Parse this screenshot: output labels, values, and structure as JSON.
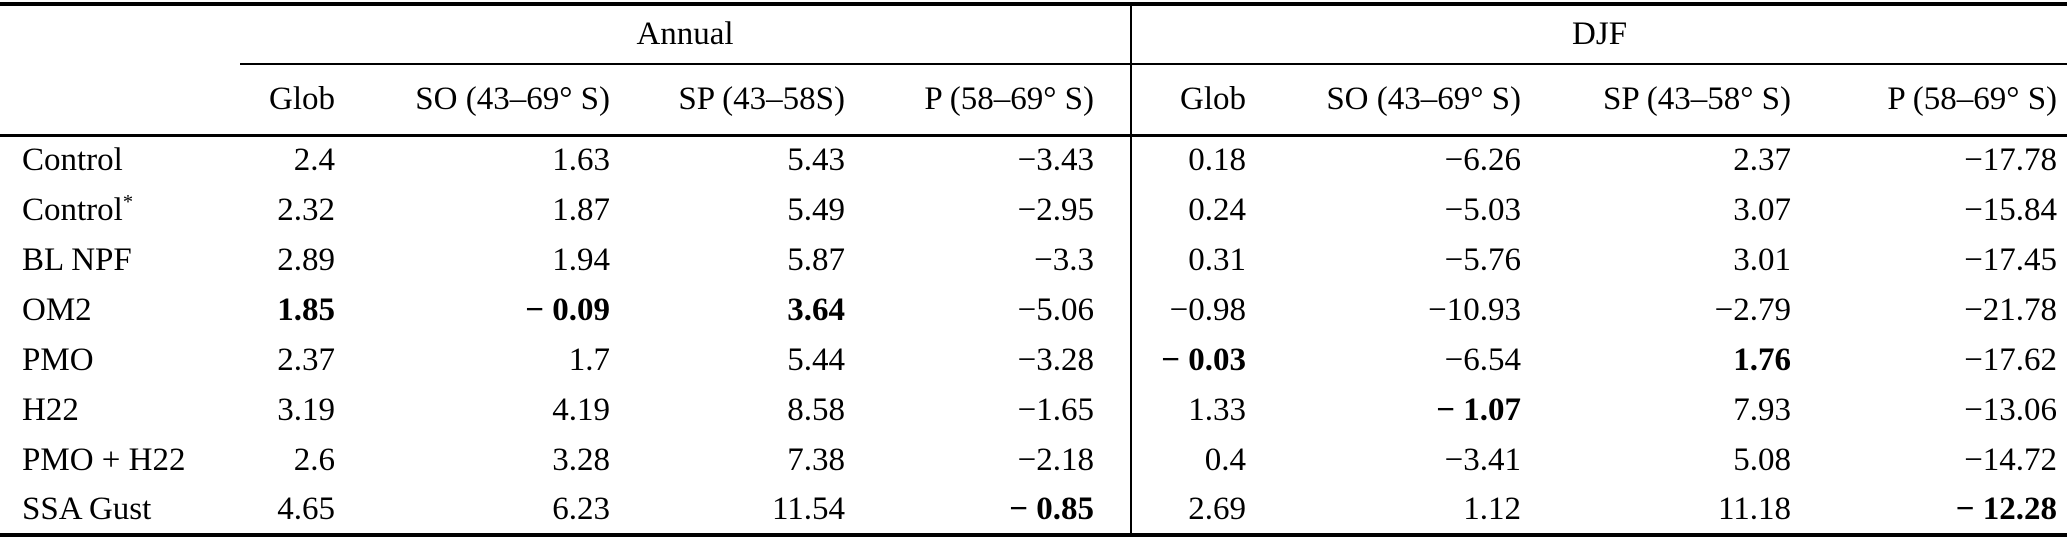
{
  "colors": {
    "background": "#ffffff",
    "text": "#000000",
    "rule": "#000000"
  },
  "table": {
    "groups": [
      {
        "label": "Annual"
      },
      {
        "label": "DJF"
      }
    ],
    "columns": [
      "Glob",
      "SO (43–69° S)",
      "SP (43–58S)",
      "P (58–69° S)",
      "Glob",
      "SO (43–69° S)",
      "SP (43–58° S)",
      "P (58–69° S)"
    ],
    "rows": [
      {
        "label": "Control",
        "sup": "",
        "values": [
          "2.4",
          "1.63",
          "5.43",
          "−3.43",
          "0.18",
          "−6.26",
          "2.37",
          "−17.78"
        ],
        "bold": [
          0,
          0,
          0,
          0,
          0,
          0,
          0,
          0
        ]
      },
      {
        "label": "Control",
        "sup": "*",
        "values": [
          "2.32",
          "1.87",
          "5.49",
          "−2.95",
          "0.24",
          "−5.03",
          "3.07",
          "−15.84"
        ],
        "bold": [
          0,
          0,
          0,
          0,
          0,
          0,
          0,
          0
        ]
      },
      {
        "label": "BL NPF",
        "sup": "",
        "values": [
          "2.89",
          "1.94",
          "5.87",
          "−3.3",
          "0.31",
          "−5.76",
          "3.01",
          "−17.45"
        ],
        "bold": [
          0,
          0,
          0,
          0,
          0,
          0,
          0,
          0
        ]
      },
      {
        "label": "OM2",
        "sup": "",
        "values": [
          "1.85",
          "− 0.09",
          "3.64",
          "−5.06",
          "−0.98",
          "−10.93",
          "−2.79",
          "−21.78"
        ],
        "bold": [
          1,
          1,
          1,
          0,
          0,
          0,
          0,
          0
        ]
      },
      {
        "label": "PMO",
        "sup": "",
        "values": [
          "2.37",
          "1.7",
          "5.44",
          "−3.28",
          "− 0.03",
          "−6.54",
          "1.76",
          "−17.62"
        ],
        "bold": [
          0,
          0,
          0,
          0,
          1,
          0,
          1,
          0
        ]
      },
      {
        "label": "H22",
        "sup": "",
        "values": [
          "3.19",
          "4.19",
          "8.58",
          "−1.65",
          "1.33",
          "− 1.07",
          "7.93",
          "−13.06"
        ],
        "bold": [
          0,
          0,
          0,
          0,
          0,
          1,
          0,
          0
        ]
      },
      {
        "label": "PMO + H22",
        "sup": "",
        "values": [
          "2.6",
          "3.28",
          "7.38",
          "−2.18",
          "0.4",
          "−3.41",
          "5.08",
          "−14.72"
        ],
        "bold": [
          0,
          0,
          0,
          0,
          0,
          0,
          0,
          0
        ]
      },
      {
        "label": "SSA Gust",
        "sup": "",
        "values": [
          "4.65",
          "6.23",
          "11.54",
          "− 0.85",
          "2.69",
          "1.12",
          "11.18",
          "− 12.28"
        ],
        "bold": [
          0,
          0,
          0,
          1,
          0,
          0,
          0,
          1
        ]
      }
    ]
  }
}
